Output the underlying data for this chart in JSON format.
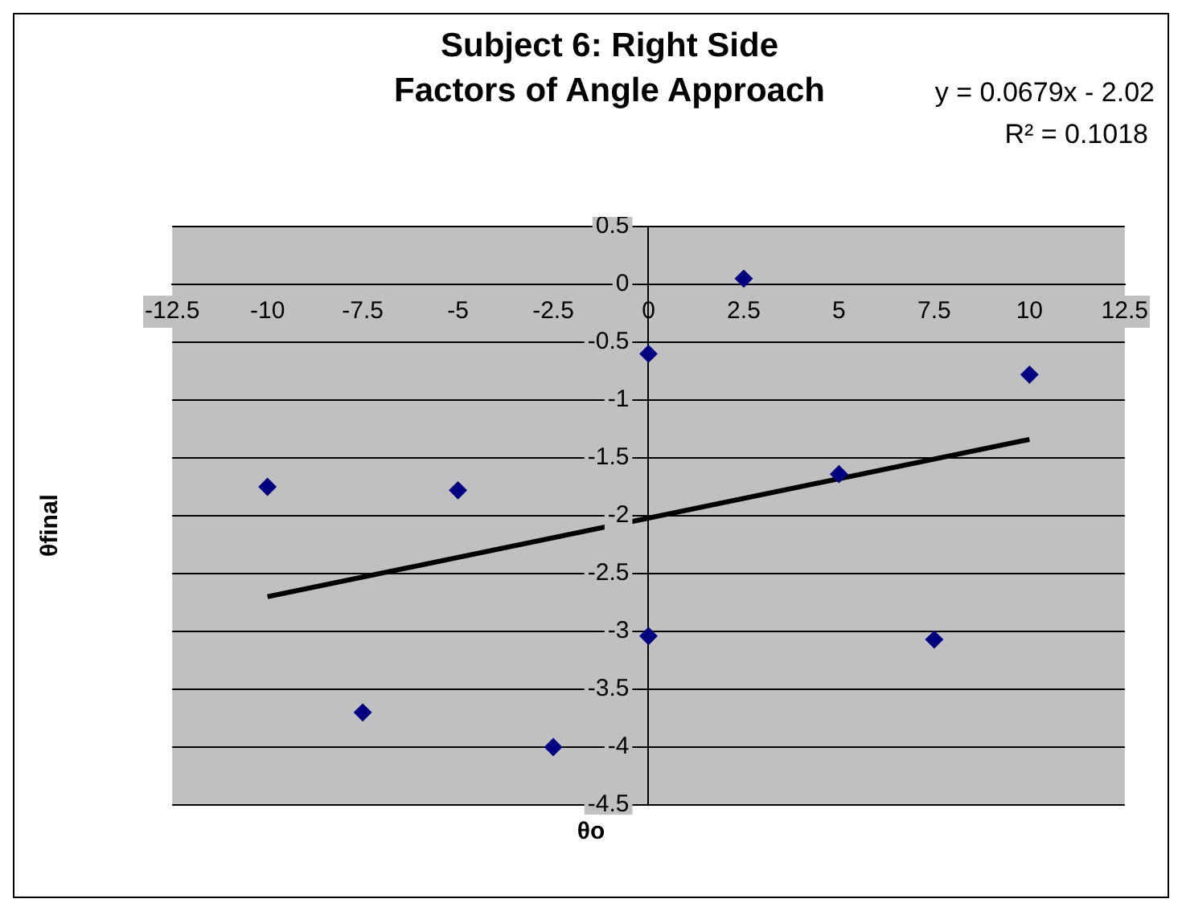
{
  "chart_data": {
    "type": "scatter",
    "title": "Subject 6: Right Side\nFactors of Angle Approach",
    "xlabel": "θo",
    "ylabel": "θfinal",
    "annotations": [
      "y = 0.0679x - 2.02",
      "R² = 0.1018"
    ],
    "series": [
      {
        "type": "scatter",
        "color": "#000080",
        "marker": "diamond",
        "x": [
          -10,
          -7.5,
          -5,
          -2.5,
          0,
          0,
          2.5,
          5,
          7.5,
          10
        ],
        "values": [
          -1.75,
          -3.7,
          -1.78,
          -4,
          -0.6,
          -3.04,
          0.05,
          -1.64,
          -3.07,
          -0.78
        ]
      },
      {
        "type": "line",
        "color": "#000000",
        "marker": "none",
        "x": [
          -10,
          10
        ],
        "values": [
          -2.7,
          -1.34
        ]
      }
    ],
    "xlim": [
      -12.5,
      12.5
    ],
    "xticks": [
      -12.5,
      -10,
      -7.5,
      -5,
      -2.5,
      0,
      2.5,
      5,
      7.5,
      10,
      12.5
    ],
    "ylim": [
      -4.5,
      0.5
    ],
    "yticks": [
      0.5,
      0,
      -0.5,
      -1,
      -1.5,
      -2,
      -2.5,
      -3,
      -3.5,
      -4,
      -4.5
    ],
    "grid": "y",
    "legend": false
  }
}
